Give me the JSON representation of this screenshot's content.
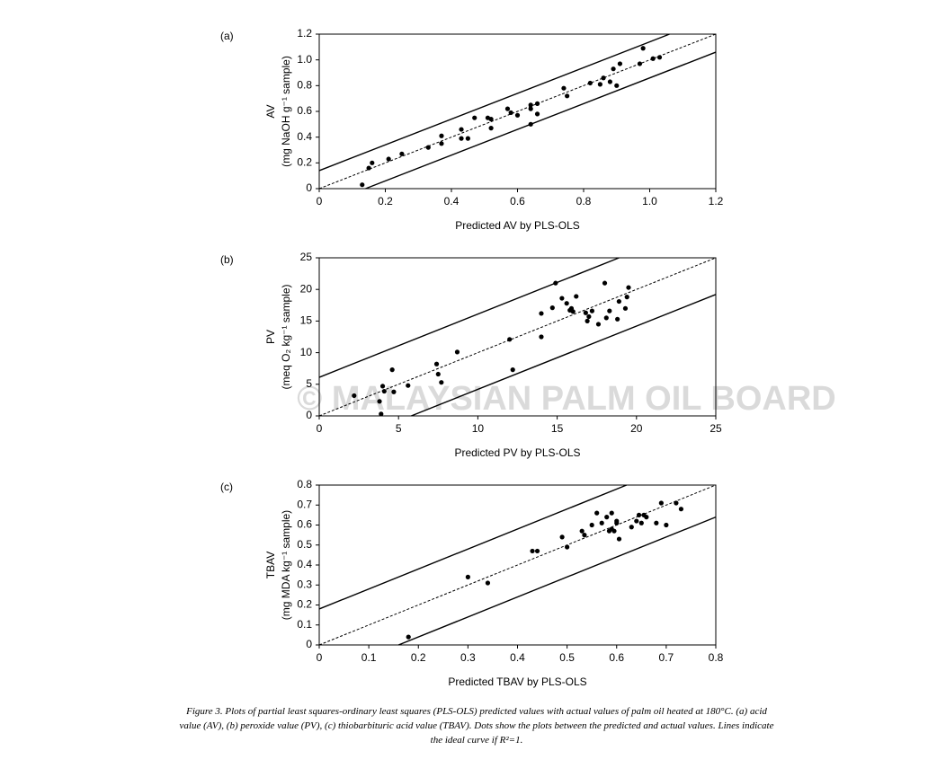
{
  "chart_data": [
    {
      "type": "scatter",
      "panel": "(a)",
      "ylabel": [
        "AV",
        "(mg NaOH g⁻¹ sample)"
      ],
      "xlabel": "Predicted AV by PLS-OLS",
      "xlim": [
        0,
        1.2
      ],
      "ylim": [
        0,
        1.2
      ],
      "xticks": [
        0,
        0.2,
        0.4,
        0.6,
        0.8,
        {
          "value": 1,
          "label": "1.0"
        },
        1.2
      ],
      "yticks": [
        0,
        0.2,
        0.4,
        0.6,
        0.8,
        {
          "value": 1,
          "label": "1.0"
        },
        1.2
      ],
      "color": "#000000",
      "x": [
        0.13,
        0.15,
        0.16,
        0.21,
        0.25,
        0.33,
        0.37,
        0.37,
        0.43,
        0.43,
        0.45,
        0.47,
        0.51,
        0.52,
        0.52,
        0.57,
        0.58,
        0.6,
        0.64,
        0.64,
        0.64,
        0.66,
        0.66,
        0.74,
        0.75,
        0.82,
        0.85,
        0.86,
        0.88,
        0.89,
        0.9,
        0.91,
        0.97,
        0.98,
        1.01,
        1.03
      ],
      "values": [
        0.03,
        0.16,
        0.2,
        0.23,
        0.27,
        0.32,
        0.41,
        0.35,
        0.46,
        0.39,
        0.39,
        0.55,
        0.55,
        0.54,
        0.47,
        0.62,
        0.59,
        0.57,
        0.5,
        0.65,
        0.62,
        0.66,
        0.58,
        0.78,
        0.72,
        0.82,
        0.81,
        0.86,
        0.83,
        0.93,
        0.8,
        0.97,
        0.97,
        1.09,
        1.01,
        1.02
      ],
      "lines": [
        {
          "style": "dashed",
          "x": [
            0,
            1.2
          ],
          "y": [
            0,
            1.2
          ]
        },
        {
          "style": "solid",
          "x": [
            0,
            1.06
          ],
          "y": [
            0.14,
            1.2
          ]
        },
        {
          "style": "solid",
          "x": [
            0.14,
            1.2
          ],
          "y": [
            0,
            1.06
          ]
        }
      ]
    },
    {
      "type": "scatter",
      "panel": "(b)",
      "ylabel": [
        "PV",
        "(meq O₂ kg⁻¹ sample)"
      ],
      "xlabel": "Predicted PV by PLS-OLS",
      "xlim": [
        0,
        25
      ],
      "ylim": [
        0,
        25
      ],
      "xticks": [
        0,
        5,
        10,
        15,
        20,
        25
      ],
      "yticks": [
        0,
        5,
        10,
        15,
        20,
        25
      ],
      "color": "#000000",
      "x": [
        2.2,
        3.8,
        4.0,
        3.9,
        4.1,
        4.6,
        4.7,
        5.6,
        7.4,
        7.5,
        7.7,
        8.7,
        12.0,
        12.2,
        14.0,
        14.0,
        14.7,
        14.9,
        15.3,
        15.6,
        15.8,
        15.9,
        16.0,
        16.2,
        16.8,
        16.9,
        17.0,
        17.2,
        17.6,
        18.0,
        18.1,
        18.3,
        18.8,
        18.9,
        19.3,
        19.4,
        19.5
      ],
      "values": [
        3.2,
        2.3,
        4.7,
        0.3,
        3.9,
        7.3,
        3.8,
        4.8,
        8.2,
        6.6,
        5.3,
        10.1,
        12.1,
        7.3,
        16.2,
        12.5,
        17.1,
        21.0,
        18.6,
        17.8,
        16.7,
        17.0,
        16.5,
        18.9,
        16.3,
        15.0,
        15.7,
        16.6,
        14.5,
        21.0,
        15.5,
        16.6,
        15.3,
        18.1,
        17.0,
        18.8,
        20.3
      ],
      "lines": [
        {
          "style": "dashed",
          "x": [
            0,
            25
          ],
          "y": [
            0,
            25
          ]
        },
        {
          "style": "solid",
          "x": [
            0,
            18.9
          ],
          "y": [
            6.1,
            25
          ]
        },
        {
          "style": "solid",
          "x": [
            5.8,
            25
          ],
          "y": [
            0,
            19.2
          ]
        }
      ]
    },
    {
      "type": "scatter",
      "panel": "(c)",
      "ylabel": [
        "TBAV",
        "(mg MDA kg⁻¹ sample)"
      ],
      "xlabel": "Predicted TBAV by PLS-OLS",
      "xlim": [
        0,
        0.8
      ],
      "ylim": [
        0,
        0.8
      ],
      "xticks": [
        0,
        0.1,
        0.2,
        0.3,
        0.4,
        0.5,
        0.6,
        0.7,
        0.8
      ],
      "yticks": [
        0,
        0.1,
        0.2,
        0.3,
        0.4,
        0.5,
        0.6,
        0.7,
        0.8
      ],
      "color": "#000000",
      "x": [
        0.18,
        0.3,
        0.34,
        0.43,
        0.44,
        0.49,
        0.5,
        0.53,
        0.535,
        0.55,
        0.56,
        0.57,
        0.58,
        0.585,
        0.59,
        0.59,
        0.595,
        0.6,
        0.6,
        0.605,
        0.63,
        0.64,
        0.645,
        0.65,
        0.655,
        0.66,
        0.68,
        0.69,
        0.7,
        0.72,
        0.73
      ],
      "values": [
        0.04,
        0.34,
        0.31,
        0.47,
        0.47,
        0.54,
        0.49,
        0.57,
        0.55,
        0.6,
        0.66,
        0.61,
        0.64,
        0.57,
        0.66,
        0.58,
        0.57,
        0.61,
        0.62,
        0.53,
        0.59,
        0.62,
        0.65,
        0.61,
        0.65,
        0.64,
        0.61,
        0.71,
        0.6,
        0.71,
        0.68
      ],
      "lines": [
        {
          "style": "dashed",
          "x": [
            0,
            0.8
          ],
          "y": [
            0,
            0.8
          ]
        },
        {
          "style": "solid",
          "x": [
            0,
            0.62
          ],
          "y": [
            0.18,
            0.8
          ]
        },
        {
          "style": "solid",
          "x": [
            0.16,
            0.8
          ],
          "y": [
            0,
            0.64
          ]
        }
      ]
    }
  ],
  "watermark": "© MALAYSIAN PALM OIL BOARD",
  "caption": "Figure 3. Plots of partial least squares-ordinary least squares (PLS-OLS) predicted values with actual values of palm oil heated at 180°C. (a) acid value (AV), (b) peroxide value (PV), (c) thiobarbituric acid value (TBAV). Dots show the plots between the predicted and actual values. Lines indicate the ideal curve if R²=1."
}
